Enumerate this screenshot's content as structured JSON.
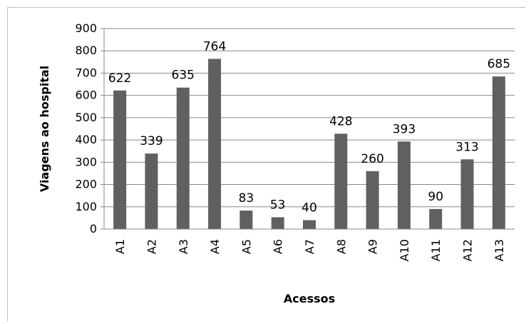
{
  "chart_data": {
    "type": "bar",
    "categories": [
      "A1",
      "A2",
      "A3",
      "A4",
      "A5",
      "A6",
      "A7",
      "A8",
      "A9",
      "A10",
      "A11",
      "A12",
      "A13"
    ],
    "values": [
      622,
      339,
      635,
      764,
      83,
      53,
      40,
      428,
      260,
      393,
      90,
      313,
      685
    ],
    "data_labels": [
      "622",
      "339",
      "635",
      "764",
      "83",
      "53",
      "40",
      "428",
      "260",
      "393",
      "90",
      "313",
      "685"
    ],
    "xlabel": "Acessos",
    "ylabel": "Viagens ao hospital",
    "ylim": [
      0,
      900
    ],
    "yticks": [
      0,
      100,
      200,
      300,
      400,
      500,
      600,
      700,
      800,
      900
    ],
    "grid": true,
    "bar_color": "#606060",
    "gridline_color": "#888888"
  }
}
